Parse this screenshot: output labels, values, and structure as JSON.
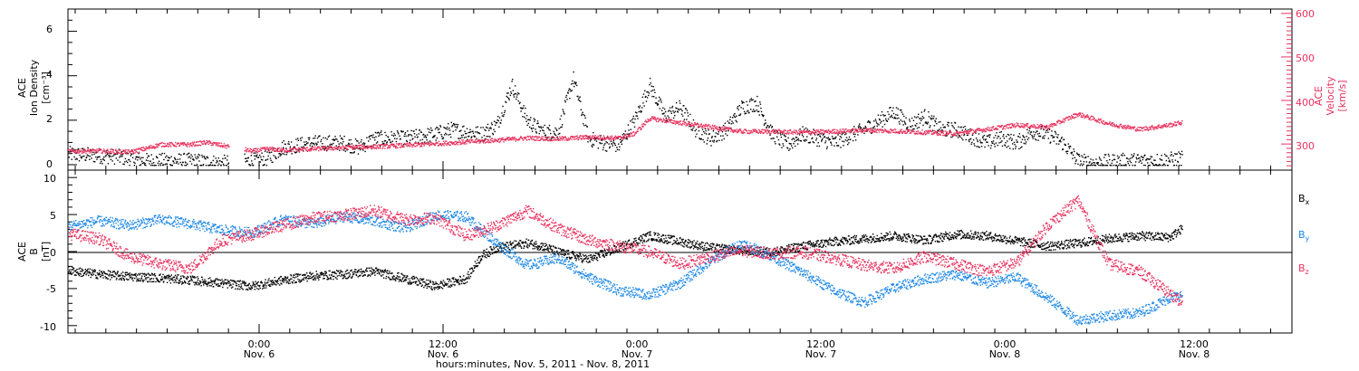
{
  "colors": {
    "black": "#000000",
    "blue": "#1E88E5",
    "pink": "#E8325F"
  },
  "chart_data": [
    {
      "type": "scatter",
      "panel": "top",
      "ylabel_left": [
        "ACE",
        "Ion Density",
        "[cm⁻³]"
      ],
      "ylabel_right": [
        "ACE",
        "Velocity",
        "[km/s]"
      ],
      "ylim_left": [
        0,
        7
      ],
      "yticks_left": [
        "0",
        "2",
        "4",
        "6"
      ],
      "ylim_right": [
        240,
        610
      ],
      "yticks_right": [
        "300",
        "400",
        "500",
        "600"
      ],
      "xlim_hours": [
        0,
        84
      ],
      "series": [
        {
          "name": "Ion Density",
          "axis": "left",
          "color": "black",
          "points": [
            [
              0,
              0.5
            ],
            [
              3,
              0.4
            ],
            [
              5,
              0.2
            ],
            [
              8,
              0.2
            ],
            [
              10,
              0.1
            ],
            [
              12,
              0.2
            ],
            [
              13,
              0.3
            ],
            [
              14,
              0.8
            ],
            [
              15,
              0.9
            ],
            [
              16,
              1.0
            ],
            [
              18,
              1.0
            ],
            [
              19,
              0.8
            ],
            [
              20,
              1.2
            ],
            [
              22,
              1.2
            ],
            [
              24,
              1.4
            ],
            [
              25,
              1.6
            ],
            [
              27,
              1.4
            ],
            [
              28,
              1.8
            ],
            [
              29,
              3.6
            ],
            [
              30,
              2.0
            ],
            [
              31,
              1.5
            ],
            [
              32,
              1.5
            ],
            [
              33,
              3.9
            ],
            [
              34,
              1.2
            ],
            [
              35,
              1.0
            ],
            [
              36,
              0.9
            ],
            [
              37,
              2.0
            ],
            [
              38,
              3.6
            ],
            [
              39,
              2.2
            ],
            [
              40,
              2.6
            ],
            [
              41,
              1.6
            ],
            [
              42,
              1.2
            ],
            [
              43,
              1.6
            ],
            [
              44,
              2.6
            ],
            [
              45,
              2.8
            ],
            [
              46,
              1.4
            ],
            [
              47,
              0.9
            ],
            [
              48,
              1.4
            ],
            [
              50,
              1.0
            ],
            [
              52,
              1.6
            ],
            [
              54,
              2.4
            ],
            [
              55,
              1.8
            ],
            [
              56,
              2.2
            ],
            [
              57,
              1.6
            ],
            [
              58,
              1.6
            ],
            [
              60,
              1.0
            ],
            [
              61,
              1.2
            ],
            [
              62,
              1.0
            ],
            [
              63,
              1.5
            ],
            [
              64,
              1.4
            ],
            [
              65,
              1.0
            ],
            [
              66,
              0.2
            ],
            [
              67,
              0.1
            ],
            [
              69,
              0.2
            ],
            [
              71,
              0.2
            ],
            [
              73,
              0.3
            ],
            [
              74,
              0.6
            ],
            [
              75,
              1.0
            ],
            [
              76,
              2.0
            ],
            [
              77,
              1.4
            ],
            [
              78,
              1.2
            ],
            [
              79,
              1.4
            ],
            [
              80,
              1.2
            ],
            [
              81,
              3.0
            ],
            [
              82,
              1.6
            ],
            [
              83,
              1.4
            ],
            [
              84,
              1.2
            ]
          ]
        },
        {
          "name": "Velocity",
          "axis": "right",
          "color": "pink",
          "points": [
            [
              0,
              285
            ],
            [
              2,
              285
            ],
            [
              4,
              283
            ],
            [
              5,
              290
            ],
            [
              6,
              300
            ],
            [
              8,
              300
            ],
            [
              9,
              305
            ],
            [
              12,
              285
            ],
            [
              13,
              290
            ],
            [
              14,
              287
            ],
            [
              16,
              290
            ],
            [
              18,
              293
            ],
            [
              20,
              295
            ],
            [
              22,
              298
            ],
            [
              24,
              302
            ],
            [
              26,
              306
            ],
            [
              28,
              310
            ],
            [
              30,
              315
            ],
            [
              32,
              313
            ],
            [
              34,
              317
            ],
            [
              36,
              315
            ],
            [
              37,
              325
            ],
            [
              38,
              360
            ],
            [
              40,
              350
            ],
            [
              42,
              340
            ],
            [
              44,
              330
            ],
            [
              46,
              330
            ],
            [
              48,
              328
            ],
            [
              50,
              330
            ],
            [
              52,
              333
            ],
            [
              54,
              331
            ],
            [
              56,
              328
            ],
            [
              58,
              325
            ],
            [
              60,
              335
            ],
            [
              62,
              345
            ],
            [
              64,
              340
            ],
            [
              65,
              355
            ],
            [
              66,
              370
            ],
            [
              68,
              348
            ],
            [
              70,
              335
            ],
            [
              72,
              345
            ],
            [
              74,
              360
            ],
            [
              76,
              375
            ],
            [
              78,
              378
            ],
            [
              80,
              382
            ],
            [
              81,
              386
            ],
            [
              82,
              393
            ],
            [
              83,
              388
            ],
            [
              84,
              382
            ]
          ]
        }
      ]
    },
    {
      "type": "line",
      "panel": "bottom",
      "ylabel_left": [
        "ACE",
        "B",
        "[nT]"
      ],
      "ylim": [
        -11,
        11
      ],
      "yticks": [
        "-10",
        "-5",
        "0",
        "5",
        "10"
      ],
      "xlim_hours": [
        0,
        84
      ],
      "series": [
        {
          "name": "B",
          "subscript": "x",
          "color": "black",
          "points": [
            [
              0,
              -2.5
            ],
            [
              2,
              -3
            ],
            [
              4,
              -3.3
            ],
            [
              6,
              -3.5
            ],
            [
              8,
              -3.8
            ],
            [
              10,
              -4.2
            ],
            [
              12,
              -4.6
            ],
            [
              14,
              -3.8
            ],
            [
              16,
              -3.2
            ],
            [
              18,
              -3
            ],
            [
              20,
              -2.6
            ],
            [
              22,
              -3.6
            ],
            [
              24,
              -4.6
            ],
            [
              26,
              -3.6
            ],
            [
              27,
              -0.5
            ],
            [
              28,
              0.6
            ],
            [
              30,
              1.2
            ],
            [
              31,
              0.8
            ],
            [
              32,
              0
            ],
            [
              34,
              -1
            ],
            [
              36,
              0.6
            ],
            [
              38,
              2.2
            ],
            [
              40,
              1.4
            ],
            [
              42,
              0.6
            ],
            [
              44,
              0.2
            ],
            [
              46,
              0
            ],
            [
              48,
              0.8
            ],
            [
              50,
              1.4
            ],
            [
              52,
              1.8
            ],
            [
              54,
              2.2
            ],
            [
              56,
              1.6
            ],
            [
              58,
              2.4
            ],
            [
              60,
              2.2
            ],
            [
              62,
              1.5
            ],
            [
              64,
              0.8
            ],
            [
              66,
              1.2
            ],
            [
              68,
              1.8
            ],
            [
              70,
              2.2
            ],
            [
              72,
              2
            ],
            [
              74,
              5
            ],
            [
              76,
              3.2
            ],
            [
              78,
              1.8
            ],
            [
              80,
              1.4
            ],
            [
              82,
              2.4
            ],
            [
              84,
              1.2
            ]
          ]
        },
        {
          "name": "B",
          "subscript": "y",
          "color": "blue",
          "points": [
            [
              0,
              3.5
            ],
            [
              2,
              4.2
            ],
            [
              4,
              3.6
            ],
            [
              6,
              4.4
            ],
            [
              8,
              3.8
            ],
            [
              10,
              3
            ],
            [
              12,
              2.6
            ],
            [
              14,
              4.4
            ],
            [
              16,
              3.8
            ],
            [
              18,
              4.8
            ],
            [
              20,
              4.2
            ],
            [
              22,
              3.2
            ],
            [
              24,
              5
            ],
            [
              26,
              4.8
            ],
            [
              28,
              1.2
            ],
            [
              30,
              -1.8
            ],
            [
              32,
              -0.8
            ],
            [
              34,
              -3.4
            ],
            [
              36,
              -5.2
            ],
            [
              38,
              -5.8
            ],
            [
              40,
              -4.2
            ],
            [
              42,
              -1.2
            ],
            [
              44,
              1.2
            ],
            [
              46,
              -0.6
            ],
            [
              48,
              -2.8
            ],
            [
              50,
              -5.2
            ],
            [
              52,
              -6.8
            ],
            [
              54,
              -4.8
            ],
            [
              56,
              -3.6
            ],
            [
              58,
              -3
            ],
            [
              60,
              -4.2
            ],
            [
              62,
              -3.4
            ],
            [
              64,
              -6.2
            ],
            [
              66,
              -9.2
            ],
            [
              68,
              -8.6
            ],
            [
              70,
              -8.2
            ],
            [
              72,
              -6.2
            ],
            [
              74,
              -5.2
            ],
            [
              76,
              -2.6
            ],
            [
              78,
              -4.2
            ],
            [
              80,
              -2.8
            ],
            [
              82,
              -1.6
            ],
            [
              84,
              -3
            ]
          ]
        },
        {
          "name": "B",
          "subscript": "z",
          "color": "pink",
          "points": [
            [
              0,
              2.5
            ],
            [
              2,
              1.8
            ],
            [
              4,
              -0.6
            ],
            [
              6,
              -1.6
            ],
            [
              8,
              -2.2
            ],
            [
              10,
              1.6
            ],
            [
              12,
              2.4
            ],
            [
              14,
              3.6
            ],
            [
              16,
              4.6
            ],
            [
              18,
              5
            ],
            [
              20,
              5.6
            ],
            [
              22,
              4.4
            ],
            [
              24,
              4.6
            ],
            [
              26,
              2.2
            ],
            [
              28,
              3.6
            ],
            [
              30,
              5.6
            ],
            [
              32,
              3.2
            ],
            [
              34,
              1.6
            ],
            [
              36,
              0.8
            ],
            [
              38,
              0
            ],
            [
              40,
              -1.6
            ],
            [
              42,
              -0.6
            ],
            [
              44,
              0.2
            ],
            [
              46,
              -0.2
            ],
            [
              48,
              0
            ],
            [
              50,
              -0.8
            ],
            [
              52,
              -1.8
            ],
            [
              54,
              -2.2
            ],
            [
              56,
              -0.6
            ],
            [
              58,
              -1.6
            ],
            [
              60,
              -2.6
            ],
            [
              62,
              -1.4
            ],
            [
              64,
              3.6
            ],
            [
              66,
              7
            ],
            [
              68,
              -1.6
            ],
            [
              70,
              -2.6
            ],
            [
              72,
              -5.6
            ],
            [
              74,
              -8.6
            ],
            [
              76,
              -4.6
            ],
            [
              78,
              -2.6
            ],
            [
              80,
              -1.6
            ],
            [
              81,
              5.2
            ],
            [
              82,
              6.6
            ],
            [
              83,
              -3.6
            ],
            [
              84,
              -6.6
            ]
          ]
        }
      ]
    }
  ],
  "x_axis": {
    "ticks": [
      {
        "time": "0:00",
        "date": "Nov. 6"
      },
      {
        "time": "12:00",
        "date": "Nov. 6"
      },
      {
        "time": "0:00",
        "date": "Nov. 7"
      },
      {
        "time": "12:00",
        "date": "Nov. 7"
      },
      {
        "time": "0:00",
        "date": "Nov. 8"
      },
      {
        "time": "12:00",
        "date": "Nov. 8"
      }
    ],
    "title": "hours:minutes,  Nov.  5, 2011  -  Nov.  8, 2011"
  }
}
